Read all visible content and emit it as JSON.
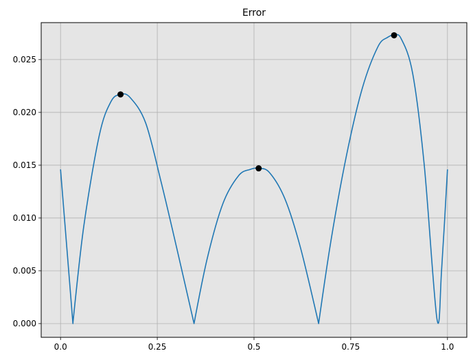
{
  "chart_data": {
    "type": "line",
    "title": "Error",
    "xlabel": "",
    "ylabel": "",
    "xlim": [
      -0.05,
      1.05
    ],
    "ylim": [
      -0.0013,
      0.0285
    ],
    "x_ticks": [
      0.0,
      0.25,
      0.5,
      0.75,
      1.0
    ],
    "x_tick_labels": [
      "0.0",
      "0.25",
      "0.5",
      "0.75",
      "1.0"
    ],
    "y_ticks": [
      0.0,
      0.005,
      0.01,
      0.015,
      0.02,
      0.025
    ],
    "y_tick_labels": [
      "0.000",
      "0.005",
      "0.010",
      "0.015",
      "0.020",
      "0.025"
    ],
    "grid": true,
    "background": "#e5e5e5",
    "grid_color": "#b0b0b0",
    "series": [
      {
        "color": "#1f77b4",
        "x": [
          0.0,
          0.032,
          0.06,
          0.1,
          0.13,
          0.155,
          0.18,
          0.22,
          0.26,
          0.3,
          0.345,
          0.38,
          0.42,
          0.46,
          0.49,
          0.512,
          0.54,
          0.58,
          0.62,
          0.667,
          0.7,
          0.74,
          0.78,
          0.82,
          0.845,
          0.862,
          0.88,
          0.91,
          0.94,
          0.973,
          0.985,
          1.0
        ],
        "y": [
          0.0146,
          0.0,
          0.0092,
          0.0178,
          0.021,
          0.0217,
          0.0214,
          0.019,
          0.0134,
          0.0072,
          0.0,
          0.0063,
          0.0114,
          0.014,
          0.0146,
          0.0147,
          0.0143,
          0.0118,
          0.0072,
          0.0,
          0.0081,
          0.0161,
          0.0223,
          0.0262,
          0.0271,
          0.0273,
          0.027,
          0.0237,
          0.015,
          0.0004,
          0.0052,
          0.0146
        ]
      }
    ],
    "markers": {
      "color": "#000000",
      "x": [
        0.155,
        0.512,
        0.862
      ],
      "y": [
        0.0217,
        0.0147,
        0.0273
      ]
    }
  }
}
